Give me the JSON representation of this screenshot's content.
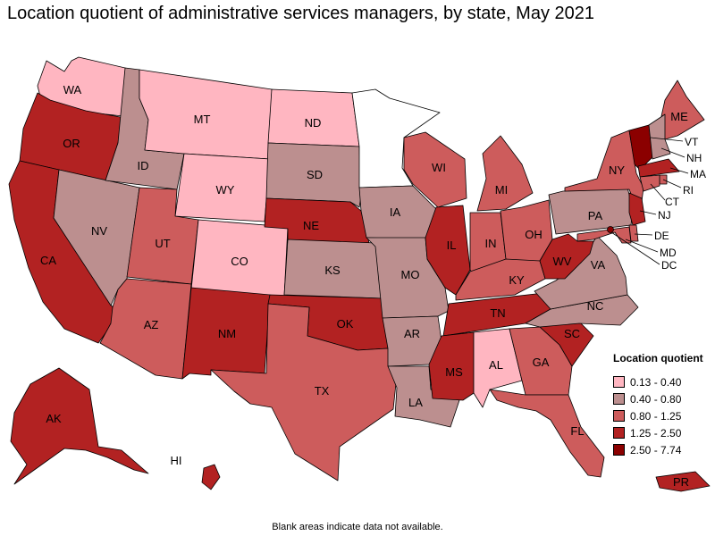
{
  "title": "Location quotient of administrative services managers, by state, May 2021",
  "footnote": "Blank areas indicate data not available.",
  "legend": {
    "title": "Location quotient",
    "items": [
      {
        "range": "0.13 - 0.40",
        "color": "#ffb6c1"
      },
      {
        "range": "0.40 - 0.80",
        "color": "#bc8f8f"
      },
      {
        "range": "0.80 - 1.25",
        "color": "#cd5c5c"
      },
      {
        "range": "1.25 - 2.50",
        "color": "#b22222"
      },
      {
        "range": "2.50 - 7.74",
        "color": "#8b0000"
      }
    ],
    "no_data_color": "#ffffff"
  },
  "states": {
    "WA": {
      "label": "WA",
      "bin": 0
    },
    "OR": {
      "label": "OR",
      "bin": 3
    },
    "CA": {
      "label": "CA",
      "bin": 3
    },
    "NV": {
      "label": "NV",
      "bin": 1
    },
    "ID": {
      "label": "ID",
      "bin": 1
    },
    "MT": {
      "label": "MT",
      "bin": 0
    },
    "WY": {
      "label": "WY",
      "bin": 0
    },
    "UT": {
      "label": "UT",
      "bin": 2
    },
    "AZ": {
      "label": "AZ",
      "bin": 2
    },
    "CO": {
      "label": "CO",
      "bin": 0
    },
    "NM": {
      "label": "NM",
      "bin": 3
    },
    "ND": {
      "label": "ND",
      "bin": 0
    },
    "SD": {
      "label": "SD",
      "bin": 1
    },
    "NE": {
      "label": "NE",
      "bin": 3
    },
    "KS": {
      "label": "KS",
      "bin": 1
    },
    "OK": {
      "label": "OK",
      "bin": 3
    },
    "TX": {
      "label": "TX",
      "bin": 2
    },
    "MN": {
      "label": "",
      "bin": null
    },
    "IA": {
      "label": "IA",
      "bin": 1
    },
    "MO": {
      "label": "MO",
      "bin": 1
    },
    "AR": {
      "label": "AR",
      "bin": 1
    },
    "LA": {
      "label": "LA",
      "bin": 1
    },
    "WI": {
      "label": "WI",
      "bin": 2
    },
    "IL": {
      "label": "IL",
      "bin": 3
    },
    "MI": {
      "label": "MI",
      "bin": 2
    },
    "IN": {
      "label": "IN",
      "bin": 2
    },
    "OH": {
      "label": "OH",
      "bin": 2
    },
    "KY": {
      "label": "KY",
      "bin": 2
    },
    "TN": {
      "label": "TN",
      "bin": 3
    },
    "MS": {
      "label": "MS",
      "bin": 3
    },
    "AL": {
      "label": "AL",
      "bin": 0
    },
    "GA": {
      "label": "GA",
      "bin": 2
    },
    "FL": {
      "label": "FL",
      "bin": 2
    },
    "SC": {
      "label": "SC",
      "bin": 3
    },
    "NC": {
      "label": "NC",
      "bin": 1
    },
    "VA": {
      "label": "VA",
      "bin": 1
    },
    "WV": {
      "label": "WV",
      "bin": 3
    },
    "PA": {
      "label": "PA",
      "bin": 1
    },
    "NY": {
      "label": "NY",
      "bin": 2
    },
    "ME": {
      "label": "ME",
      "bin": 2
    },
    "VT": {
      "label": "VT",
      "bin": 4
    },
    "NH": {
      "label": "NH",
      "bin": 1
    },
    "MA": {
      "label": "MA",
      "bin": 3
    },
    "RI": {
      "label": "RI",
      "bin": 2
    },
    "CT": {
      "label": "CT",
      "bin": 2
    },
    "NJ": {
      "label": "NJ",
      "bin": 3
    },
    "DE": {
      "label": "DE",
      "bin": 2
    },
    "MD": {
      "label": "MD",
      "bin": 2
    },
    "DC": {
      "label": "DC",
      "bin": 4
    },
    "AK": {
      "label": "AK",
      "bin": 3
    },
    "HI": {
      "label": "HI",
      "bin": 3
    },
    "PR": {
      "label": "PR",
      "bin": 3
    }
  }
}
